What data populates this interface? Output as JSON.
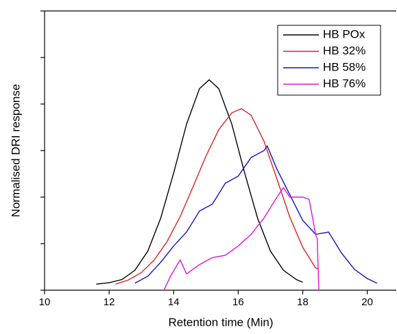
{
  "chart_data": {
    "type": "line",
    "xlabel": "Retention time (Min)",
    "ylabel": "Normalised DRI response",
    "xlim": [
      10,
      20.9
    ],
    "ylim": [
      0,
      6
    ],
    "xticks": [
      10,
      12,
      14,
      16,
      18,
      20
    ],
    "yticks": [
      0,
      1,
      2,
      3,
      4,
      5,
      6
    ],
    "legend": "upper right",
    "series": [
      {
        "name": "HB POx",
        "color": "#000000",
        "x": [
          11.6,
          12,
          12.4,
          12.8,
          13.2,
          13.6,
          14,
          14.4,
          14.8,
          15.1,
          15.4,
          15.8,
          16.2,
          16.6,
          17,
          17.4,
          17.8,
          18
        ],
        "values": [
          0.13,
          0.16,
          0.23,
          0.43,
          0.84,
          1.55,
          2.52,
          3.57,
          4.33,
          4.52,
          4.33,
          3.57,
          2.52,
          1.55,
          0.84,
          0.43,
          0.23,
          0.17
        ]
      },
      {
        "name": "HB 32%",
        "color": "#e02020",
        "x": [
          12.2,
          12.6,
          13,
          13.4,
          13.8,
          14.2,
          14.6,
          15,
          15.4,
          15.8,
          16.1,
          16.4,
          16.8,
          17.2,
          17.6,
          18,
          18.4,
          18.5
        ],
        "values": [
          0.13,
          0.22,
          0.38,
          0.65,
          1.05,
          1.58,
          2.22,
          2.88,
          3.45,
          3.81,
          3.9,
          3.76,
          3.2,
          2.39,
          1.57,
          0.92,
          0.48,
          0.45
        ]
      },
      {
        "name": "HB 58%",
        "color": "#1010c0",
        "x": [
          12.8,
          13.2,
          13.6,
          14,
          14.4,
          14.8,
          15.2,
          15.6,
          16,
          16.4,
          16.8,
          16.9,
          17.2,
          17.6,
          18,
          18.4,
          18.8,
          19.2,
          19.6,
          20,
          20.3
        ],
        "values": [
          0.15,
          0.3,
          0.6,
          0.95,
          1.25,
          1.7,
          1.85,
          2.3,
          2.45,
          2.85,
          3.0,
          3.1,
          2.6,
          2.05,
          1.5,
          1.2,
          1.25,
          0.8,
          0.45,
          0.25,
          0.15
        ]
      },
      {
        "name": "HB 76%",
        "color": "#e010e0",
        "x": [
          13.7,
          13.9,
          14.2,
          14.4,
          14.8,
          15.2,
          15.6,
          16,
          16.4,
          16.8,
          17.2,
          17.4,
          17.6,
          18,
          18.2,
          18.4,
          18.45,
          18.5
        ],
        "values": [
          0,
          0.3,
          0.65,
          0.35,
          0.55,
          0.7,
          0.75,
          0.95,
          1.2,
          1.55,
          2.0,
          2.2,
          2.0,
          2.0,
          1.95,
          1.2,
          1.1,
          0
        ]
      }
    ]
  }
}
